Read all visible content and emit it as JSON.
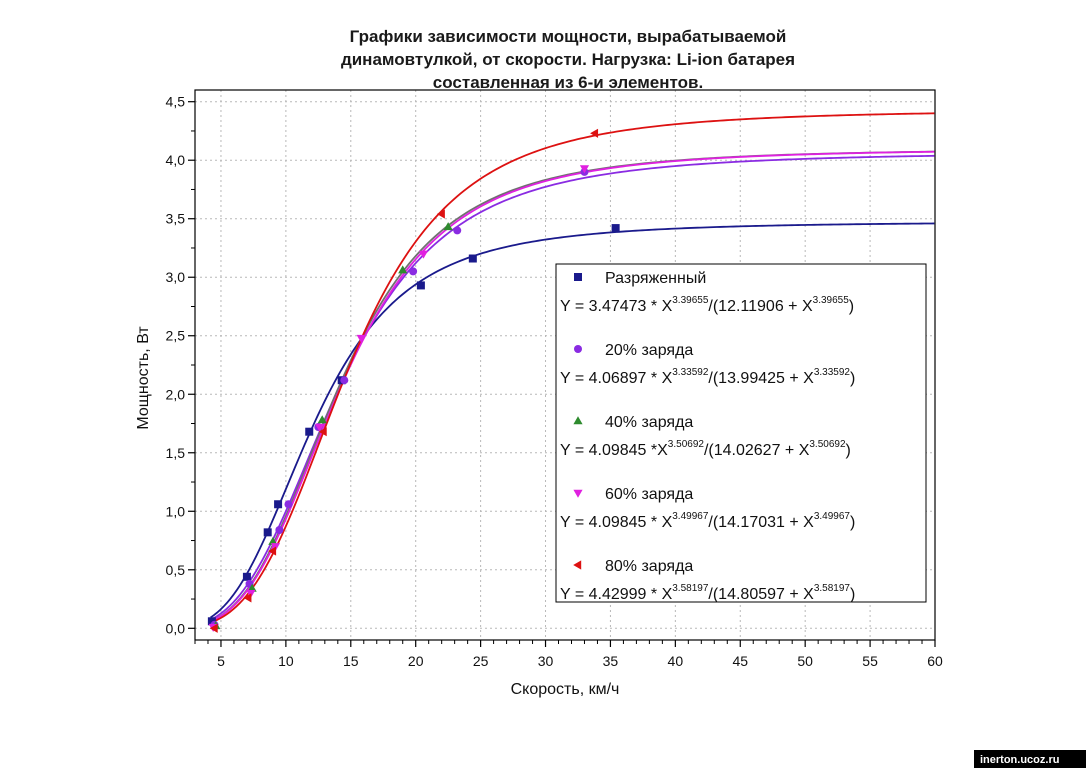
{
  "chart_data": {
    "type": "scatter",
    "title_lines": [
      "Графики зависимости мощности, вырабатываемой",
      "динамовтулкой, от скорости. Нагрузка: Li-ion батарея",
      "составленная из 6-и элементов."
    ],
    "xlabel": "Скорость, км/ч",
    "ylabel": "Мощность, Вт",
    "xlim": [
      3,
      60
    ],
    "ylim": [
      -0.1,
      4.6
    ],
    "x_ticks": [
      5,
      10,
      15,
      20,
      25,
      30,
      35,
      40,
      45,
      50,
      55,
      60
    ],
    "x_tick_labels": [
      "5",
      "10",
      "15",
      "20",
      "25",
      "30",
      "35",
      "40",
      "45",
      "50",
      "55",
      "60"
    ],
    "y_ticks": [
      0,
      0.5,
      1,
      1.5,
      2,
      2.5,
      3,
      3.5,
      4,
      4.5
    ],
    "y_tick_labels": [
      "0,0",
      "0,5",
      "1,0",
      "1,5",
      "2,0",
      "2,5",
      "3,0",
      "3,5",
      "4,0",
      "4,5"
    ],
    "grid": true,
    "legend_position": "right",
    "series": [
      {
        "name": "Разряженный",
        "marker": "square",
        "color": "#1a1a8c",
        "fit": {
          "A": 3.47473,
          "K": 12.11906,
          "n": 3.39655
        },
        "equation": {
          "a": "Y = 3.47473 * X",
          "p1": "3.39655",
          "b": "/(12.11906 + X",
          "p2": "3.39655",
          "c": ")"
        },
        "x": [
          4.3,
          7.0,
          8.6,
          9.4,
          11.8,
          14.3,
          20.4,
          24.4,
          35.4
        ],
        "y": [
          0.06,
          0.44,
          0.82,
          1.06,
          1.68,
          2.12,
          2.93,
          3.16,
          3.42
        ]
      },
      {
        "name": "20% заряда",
        "marker": "circle",
        "color": "#8a2be2",
        "fit": {
          "A": 4.06897,
          "K": 13.99425,
          "n": 3.33592
        },
        "equation": {
          "a": "Y = 4.06897 * X",
          "p1": "3.33592",
          "b": "/(13.99425 + X",
          "p2": "3.33592",
          "c": ")"
        },
        "x": [
          4.5,
          7.2,
          9.5,
          10.2,
          12.5,
          14.5,
          19.8,
          23.2,
          33.0
        ],
        "y": [
          0.03,
          0.38,
          0.84,
          1.06,
          1.72,
          2.12,
          3.05,
          3.4,
          3.9
        ]
      },
      {
        "name": "40% заряда",
        "marker": "triangle-up",
        "color": "#2e8b2e",
        "line_color": "#707070",
        "fit": {
          "A": 4.09845,
          "K": 14.02627,
          "n": 3.50692
        },
        "equation": {
          "a": "Y = 4.09845 *X",
          "p1": "3.50692",
          "b": "/(14.02627 + X",
          "p2": "3.50692",
          "c": ")"
        },
        "x": [
          4.6,
          7.4,
          9.0,
          12.8,
          19.0,
          22.5
        ],
        "y": [
          0.02,
          0.34,
          0.74,
          1.78,
          3.06,
          3.43
        ]
      },
      {
        "name": "60% заряда",
        "marker": "triangle-down",
        "color": "#e020e0",
        "fit": {
          "A": 4.09845,
          "K": 14.17031,
          "n": 3.49967
        },
        "equation": {
          "a": "Y = 4.09845 * X",
          "p1": "3.49967",
          "b": "/(14.17031 + X",
          "p2": "3.49967",
          "c": ")"
        },
        "x": [
          4.4,
          7.3,
          9.2,
          12.6,
          15.8,
          20.6,
          33.0
        ],
        "y": [
          0.01,
          0.3,
          0.7,
          1.72,
          2.48,
          3.2,
          3.93
        ]
      },
      {
        "name": "80% заряда",
        "marker": "triangle-left",
        "color": "#dd1111",
        "fit": {
          "A": 4.42999,
          "K": 14.80597,
          "n": 3.58197
        },
        "equation": {
          "a": "Y = 4.42999 * X",
          "p1": "3.58197",
          "b": "/(14.80597 + X",
          "p2": "3.58197",
          "c": ")"
        },
        "x": [
          4.5,
          7.1,
          9.0,
          12.9,
          22.0,
          33.8
        ],
        "y": [
          0.0,
          0.26,
          0.66,
          1.68,
          3.54,
          4.23
        ]
      }
    ]
  },
  "watermark": "inerton.ucoz.ru"
}
